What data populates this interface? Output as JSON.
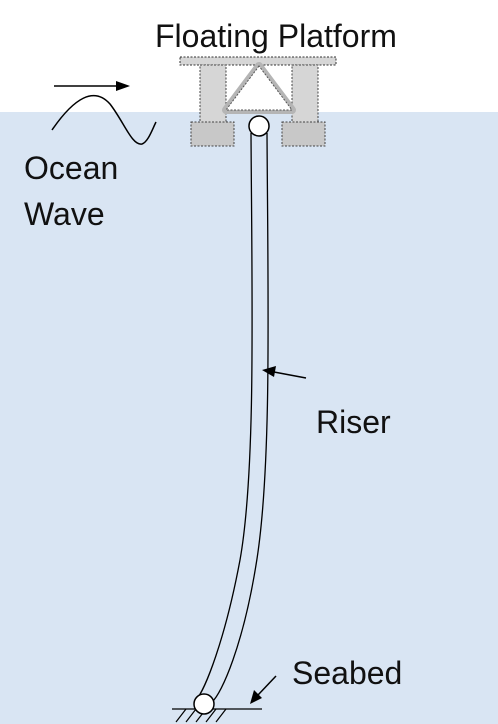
{
  "labels": {
    "platform": "Floating Platform",
    "ocean_line1": "Ocean",
    "ocean_line2": "Wave",
    "riser": "Riser",
    "seabed": "Seabed"
  },
  "colors": {
    "water": "#d9e5f3",
    "platform_fill": "#d6d6d6",
    "platform_dark": "#c8c8c8",
    "stroke": "#000000",
    "joint_fill": "#ffffff"
  },
  "icons": [
    "wave-direction-arrow",
    "ocean-wave-curve",
    "hinge-joint",
    "seabed-hatch"
  ]
}
